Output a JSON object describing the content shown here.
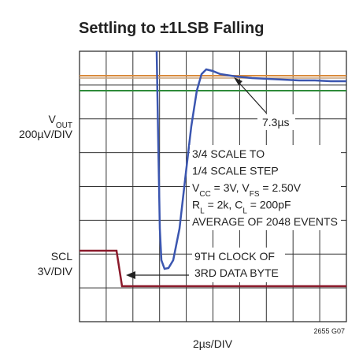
{
  "chart_data": {
    "type": "scope",
    "title": "Settling to ±1LSB Falling",
    "y_labels": [
      {
        "lines": [
          [
            "V",
            "OUT"
          ],
          [
            "200µV/DIV"
          ]
        ]
      },
      {
        "lines": [
          [
            "SCL"
          ],
          [
            "3V/DIV"
          ]
        ]
      }
    ],
    "x_label": "2µs/DIV",
    "figure_id": "2655 G07",
    "annotations": [
      {
        "lines": [
          [
            "7.3µs"
          ]
        ]
      },
      {
        "lines": [
          [
            "3/4 SCALE TO"
          ],
          [
            "1/4 SCALE STEP"
          ],
          [
            "V",
            "CC",
            " = 3V, V",
            "FS",
            " = 2.50V"
          ],
          [
            "R",
            "L",
            " = 2k, C",
            "L",
            " = 200pF"
          ],
          [
            "AVERAGE OF 2048 EVENTS"
          ]
        ]
      },
      {
        "lines": [
          [
            "9TH CLOCK OF"
          ],
          [
            "3RD DATA BYTE"
          ]
        ]
      }
    ]
  }
}
